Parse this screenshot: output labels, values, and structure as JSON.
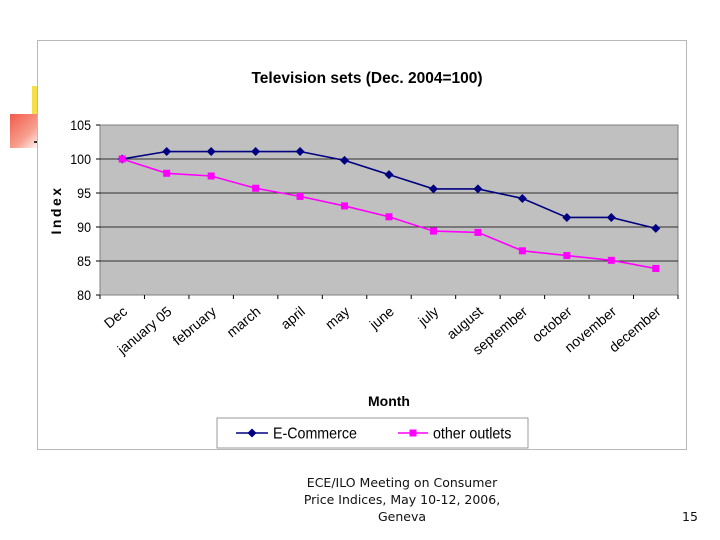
{
  "chart_data": {
    "type": "line",
    "title": "Television sets (Dec. 2004=100)",
    "xlabel": "Month",
    "ylabel": "Index",
    "categories": [
      "Dec",
      "january 05",
      "february",
      "march",
      "april",
      "may",
      "june",
      "july",
      "august",
      "september",
      "october",
      "november",
      "december"
    ],
    "ylim": [
      80,
      105
    ],
    "yticks": [
      "80",
      "85",
      "90",
      "95",
      "100",
      "105"
    ],
    "grid": true,
    "legend_position": "bottom",
    "plot_background": "#c0c0c0",
    "series": [
      {
        "name": "E-Commerce",
        "color": "#000080",
        "marker": "diamond",
        "values": [
          100,
          101.1,
          101.1,
          101.1,
          101.1,
          99.8,
          97.7,
          95.6,
          95.6,
          94.2,
          91.4,
          91.4,
          89.8
        ]
      },
      {
        "name": "other outlets",
        "color": "#ff00ff",
        "marker": "square",
        "values": [
          100,
          97.9,
          97.5,
          95.7,
          94.5,
          93.1,
          91.5,
          89.4,
          89.2,
          86.5,
          85.8,
          85.1,
          83.9
        ]
      }
    ]
  },
  "footer": {
    "line1": "ECE/ILO Meeting on Consumer",
    "line2": "Price Indices, May 10-12, 2006,",
    "line3": "Geneva"
  },
  "page_number": "15"
}
